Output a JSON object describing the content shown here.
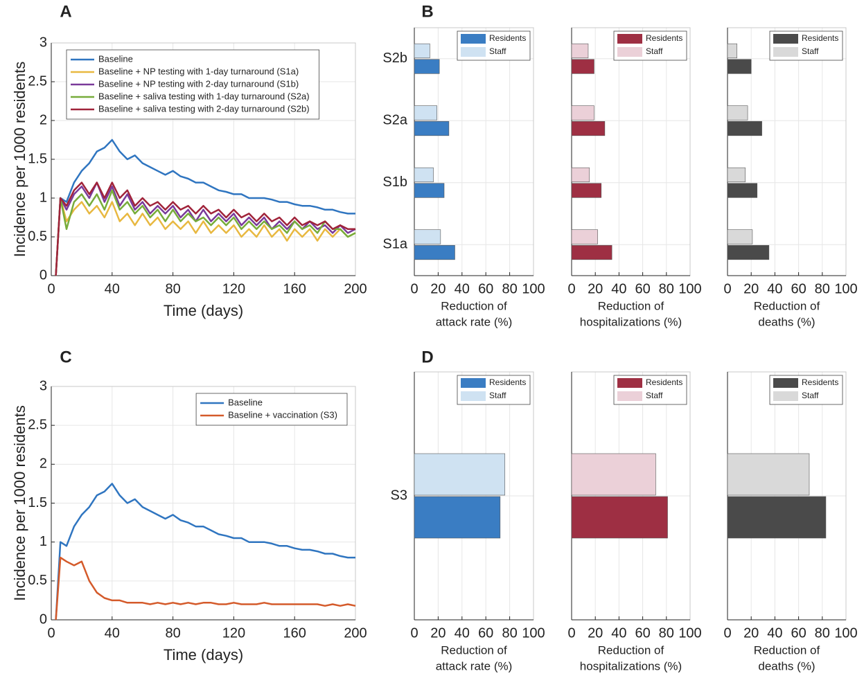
{
  "chart_data": [
    {
      "type": "line",
      "title": "A",
      "xlabel": "Time (days)",
      "ylabel": "Incidence per 1000 residents",
      "xlim": [
        0,
        200
      ],
      "xticks": [
        0,
        40,
        80,
        120,
        160,
        200
      ],
      "ylim": [
        0,
        3
      ],
      "yticks": [
        0,
        0.5,
        1,
        1.5,
        2,
        2.5,
        3
      ],
      "grid": true,
      "legend": "upper left",
      "x": [
        3,
        6,
        10,
        15,
        20,
        25,
        30,
        35,
        40,
        45,
        50,
        55,
        60,
        65,
        70,
        75,
        80,
        85,
        90,
        95,
        100,
        105,
        110,
        115,
        120,
        125,
        130,
        135,
        140,
        145,
        150,
        155,
        160,
        165,
        170,
        175,
        180,
        185,
        190,
        195,
        200
      ],
      "series": [
        {
          "name": "Baseline",
          "color": "#2f75c0",
          "values": [
            0,
            1.0,
            0.95,
            1.2,
            1.35,
            1.45,
            1.6,
            1.65,
            1.75,
            1.6,
            1.5,
            1.55,
            1.45,
            1.4,
            1.35,
            1.3,
            1.35,
            1.28,
            1.25,
            1.2,
            1.2,
            1.15,
            1.1,
            1.08,
            1.05,
            1.05,
            1.0,
            1.0,
            1.0,
            0.98,
            0.95,
            0.95,
            0.92,
            0.9,
            0.9,
            0.88,
            0.85,
            0.85,
            0.82,
            0.8,
            0.8
          ]
        },
        {
          "name": "Baseline + NP testing with 1-day turnaround (S1a)",
          "color": "#e8b840",
          "values": [
            0,
            1.0,
            0.7,
            0.85,
            0.95,
            0.8,
            0.9,
            0.75,
            0.95,
            0.7,
            0.8,
            0.65,
            0.8,
            0.65,
            0.75,
            0.6,
            0.7,
            0.6,
            0.7,
            0.55,
            0.7,
            0.55,
            0.65,
            0.55,
            0.65,
            0.5,
            0.6,
            0.5,
            0.65,
            0.5,
            0.6,
            0.45,
            0.6,
            0.5,
            0.6,
            0.45,
            0.6,
            0.5,
            0.6,
            0.5,
            0.55
          ]
        },
        {
          "name": "Baseline + NP testing with 2-day turnaround (S1b)",
          "color": "#7a3a9a",
          "values": [
            0,
            1.0,
            0.85,
            1.05,
            1.15,
            1.0,
            1.2,
            0.95,
            1.15,
            0.9,
            1.05,
            0.85,
            0.95,
            0.8,
            0.9,
            0.8,
            0.9,
            0.75,
            0.85,
            0.7,
            0.85,
            0.7,
            0.8,
            0.7,
            0.8,
            0.65,
            0.75,
            0.65,
            0.75,
            0.6,
            0.7,
            0.6,
            0.7,
            0.6,
            0.7,
            0.6,
            0.65,
            0.55,
            0.65,
            0.55,
            0.6
          ]
        },
        {
          "name": "Baseline + saliva testing with 1-day turnaround (S2a)",
          "color": "#77ac3a",
          "values": [
            0,
            1.0,
            0.6,
            0.95,
            1.05,
            0.9,
            1.05,
            0.85,
            1.1,
            0.85,
            0.95,
            0.8,
            0.9,
            0.75,
            0.85,
            0.7,
            0.85,
            0.7,
            0.8,
            0.7,
            0.75,
            0.65,
            0.75,
            0.65,
            0.75,
            0.6,
            0.7,
            0.6,
            0.7,
            0.6,
            0.65,
            0.55,
            0.7,
            0.6,
            0.65,
            0.55,
            0.7,
            0.6,
            0.6,
            0.5,
            0.55
          ]
        },
        {
          "name": "Baseline + saliva testing with 2-day turnaround (S2b)",
          "color": "#a0233a",
          "values": [
            0,
            1.0,
            0.9,
            1.1,
            1.2,
            1.05,
            1.2,
            1.0,
            1.2,
            1.0,
            1.1,
            0.9,
            1.0,
            0.9,
            0.95,
            0.85,
            0.95,
            0.85,
            0.9,
            0.8,
            0.9,
            0.8,
            0.85,
            0.75,
            0.85,
            0.75,
            0.8,
            0.7,
            0.8,
            0.7,
            0.75,
            0.65,
            0.75,
            0.65,
            0.7,
            0.65,
            0.7,
            0.6,
            0.65,
            0.6,
            0.6
          ]
        }
      ]
    },
    {
      "type": "barh",
      "title": "B",
      "categories": [
        "S1a",
        "S1b",
        "S2a",
        "S2b"
      ],
      "xlabel": [
        "Reduction of",
        "attack rate (%)"
      ],
      "xlim": [
        0,
        100
      ],
      "xticks": [
        0,
        20,
        40,
        60,
        80,
        100
      ],
      "grid": true,
      "legend": "upper right",
      "series": [
        {
          "name": "Residents",
          "color": "#3a7dc3",
          "values": [
            34,
            25,
            29,
            21
          ]
        },
        {
          "name": "Staff",
          "color": "#cfe2f2",
          "values": [
            22,
            16,
            19,
            13
          ]
        }
      ]
    },
    {
      "type": "barh",
      "xlabel": [
        "Reduction of",
        "hospitalizations (%)"
      ],
      "xlim": [
        0,
        100
      ],
      "xticks": [
        0,
        20,
        40,
        60,
        80,
        100
      ],
      "grid": true,
      "legend": "upper right",
      "series": [
        {
          "name": "Residents",
          "color": "#9e2f43",
          "values": [
            34,
            25,
            28,
            19
          ]
        },
        {
          "name": "Staff",
          "color": "#ebd0d8",
          "values": [
            22,
            15,
            19,
            14
          ]
        }
      ]
    },
    {
      "type": "barh",
      "xlabel": [
        "Reduction of",
        "deaths (%)"
      ],
      "xlim": [
        0,
        100
      ],
      "xticks": [
        0,
        20,
        40,
        60,
        80,
        100
      ],
      "grid": true,
      "legend": "upper right",
      "series": [
        {
          "name": "Residents",
          "color": "#4a4a4a",
          "values": [
            35,
            25,
            29,
            20
          ]
        },
        {
          "name": "Staff",
          "color": "#d9d9d9",
          "values": [
            21,
            15,
            17,
            8
          ]
        }
      ]
    },
    {
      "type": "line",
      "title": "C",
      "xlabel": "Time (days)",
      "ylabel": "Incidence per 1000 residents",
      "xlim": [
        0,
        200
      ],
      "xticks": [
        0,
        40,
        80,
        120,
        160,
        200
      ],
      "ylim": [
        0,
        3
      ],
      "yticks": [
        0,
        0.5,
        1,
        1.5,
        2,
        2.5,
        3
      ],
      "grid": true,
      "legend": "upper right",
      "x": [
        3,
        6,
        10,
        15,
        20,
        25,
        30,
        35,
        40,
        45,
        50,
        55,
        60,
        65,
        70,
        75,
        80,
        85,
        90,
        95,
        100,
        105,
        110,
        115,
        120,
        125,
        130,
        135,
        140,
        145,
        150,
        155,
        160,
        165,
        170,
        175,
        180,
        185,
        190,
        195,
        200
      ],
      "series": [
        {
          "name": "Baseline",
          "color": "#2f75c0",
          "values": [
            0,
            1.0,
            0.95,
            1.2,
            1.35,
            1.45,
            1.6,
            1.65,
            1.75,
            1.6,
            1.5,
            1.55,
            1.45,
            1.4,
            1.35,
            1.3,
            1.35,
            1.28,
            1.25,
            1.2,
            1.2,
            1.15,
            1.1,
            1.08,
            1.05,
            1.05,
            1.0,
            1.0,
            1.0,
            0.98,
            0.95,
            0.95,
            0.92,
            0.9,
            0.9,
            0.88,
            0.85,
            0.85,
            0.82,
            0.8,
            0.8
          ]
        },
        {
          "name": "Baseline + vaccination (S3)",
          "color": "#d45a2a",
          "values": [
            0,
            0.8,
            0.75,
            0.7,
            0.75,
            0.5,
            0.35,
            0.28,
            0.25,
            0.25,
            0.22,
            0.22,
            0.22,
            0.2,
            0.22,
            0.2,
            0.22,
            0.2,
            0.22,
            0.2,
            0.22,
            0.22,
            0.2,
            0.2,
            0.22,
            0.2,
            0.2,
            0.2,
            0.22,
            0.2,
            0.2,
            0.2,
            0.2,
            0.2,
            0.2,
            0.2,
            0.18,
            0.2,
            0.18,
            0.2,
            0.18
          ]
        }
      ]
    },
    {
      "type": "barh",
      "title": "D",
      "categories": [
        "S3"
      ],
      "xlabel": [
        "Reduction of",
        "attack rate (%)"
      ],
      "xlim": [
        0,
        100
      ],
      "xticks": [
        0,
        20,
        40,
        60,
        80,
        100
      ],
      "grid": true,
      "legend": "upper right",
      "series": [
        {
          "name": "Residents",
          "color": "#3a7dc3",
          "values": [
            72
          ]
        },
        {
          "name": "Staff",
          "color": "#cfe2f2",
          "values": [
            76
          ]
        }
      ]
    },
    {
      "type": "barh",
      "xlabel": [
        "Reduction of",
        "hospitalizations (%)"
      ],
      "xlim": [
        0,
        100
      ],
      "xticks": [
        0,
        20,
        40,
        60,
        80,
        100
      ],
      "grid": true,
      "legend": "upper right",
      "series": [
        {
          "name": "Residents",
          "color": "#9e2f43",
          "values": [
            81
          ]
        },
        {
          "name": "Staff",
          "color": "#ebd0d8",
          "values": [
            71
          ]
        }
      ]
    },
    {
      "type": "barh",
      "xlabel": [
        "Reduction of",
        "deaths (%)"
      ],
      "xlim": [
        0,
        100
      ],
      "xticks": [
        0,
        20,
        40,
        60,
        80,
        100
      ],
      "grid": true,
      "legend": "upper right",
      "series": [
        {
          "name": "Residents",
          "color": "#4a4a4a",
          "values": [
            83
          ]
        },
        {
          "name": "Staff",
          "color": "#d9d9d9",
          "values": [
            69
          ]
        }
      ]
    }
  ]
}
